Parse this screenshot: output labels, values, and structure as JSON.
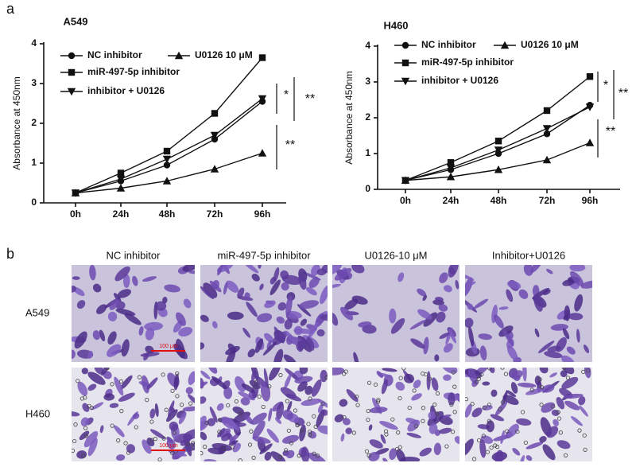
{
  "panel_labels": [
    "a",
    "b"
  ],
  "chart_data": [
    {
      "type": "line",
      "title": "A549",
      "y_label": "Absorbance at 450nm",
      "categories": [
        "0h",
        "24h",
        "48h",
        "72h",
        "96h"
      ],
      "ylim": [
        0,
        4
      ],
      "yticks": [
        0,
        1,
        2,
        3,
        4
      ],
      "series": [
        {
          "name": "NC inhibitor",
          "color": "#111111",
          "marker": "circle",
          "values": [
            0.25,
            0.55,
            0.95,
            1.6,
            2.55
          ]
        },
        {
          "name": "U0126 10 μM",
          "color": "#111111",
          "marker": "triangle",
          "values": [
            0.25,
            0.37,
            0.55,
            0.85,
            1.25
          ]
        },
        {
          "name": "miR-497-5p inhibitor",
          "color": "#111111",
          "marker": "square",
          "values": [
            0.25,
            0.75,
            1.3,
            2.25,
            3.65
          ]
        },
        {
          "name": "inhibitor + U0126",
          "color": "#111111",
          "marker": "triangle-down",
          "values": [
            0.25,
            0.6,
            1.1,
            1.7,
            2.62
          ]
        }
      ],
      "annotations": [
        "*",
        "**",
        "**"
      ]
    },
    {
      "type": "line",
      "title": "H460",
      "y_label": "Absorbance at 450nm",
      "categories": [
        "0h",
        "24h",
        "48h",
        "72h",
        "96h"
      ],
      "ylim": [
        0,
        4
      ],
      "yticks": [
        0,
        1,
        2,
        3,
        4
      ],
      "series": [
        {
          "name": "NC inhibitor",
          "color": "#111111",
          "marker": "circle",
          "values": [
            0.25,
            0.55,
            1.0,
            1.55,
            2.35
          ]
        },
        {
          "name": "U0126 10 μM",
          "color": "#111111",
          "marker": "triangle",
          "values": [
            0.25,
            0.35,
            0.55,
            0.82,
            1.3
          ]
        },
        {
          "name": "miR-497-5p inhibitor",
          "color": "#111111",
          "marker": "square",
          "values": [
            0.25,
            0.75,
            1.35,
            2.2,
            3.15
          ]
        },
        {
          "name": "inhibitor + U0126",
          "color": "#111111",
          "marker": "triangle-down",
          "values": [
            0.25,
            0.6,
            1.1,
            1.7,
            2.3
          ]
        }
      ],
      "annotations": [
        "*",
        "**",
        "**"
      ]
    }
  ],
  "images": {
    "columns": [
      "NC inhibitor",
      "miR-497-5p inhibitor",
      "U0126-10 μM",
      "Inhibitor+U0126"
    ],
    "rows": [
      "A549",
      "H460"
    ],
    "scale_bar": "100 μm"
  }
}
